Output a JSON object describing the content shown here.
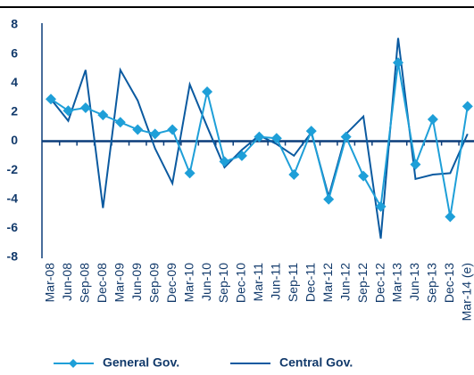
{
  "chart_data": {
    "type": "line",
    "categories": [
      "Mar-08",
      "Jun-08",
      "Sep-08",
      "Dec-08",
      "Mar-09",
      "Jun-09",
      "Sep-09",
      "Dec-09",
      "Mar-10",
      "Jun-10",
      "Sep-10",
      "Dec-10",
      "Mar-11",
      "Jun-11",
      "Sep-11",
      "Dec-11",
      "Mar-12",
      "Jun-12",
      "Sep-12",
      "Dec-12",
      "Mar-13",
      "Jun-13",
      "Sep-13",
      "Dec-13",
      "Mar-14 (e)"
    ],
    "series": [
      {
        "name": "General Gov.",
        "color": "#1e9fd8",
        "marker": "diamond",
        "values": [
          2.9,
          2.1,
          2.3,
          1.8,
          1.3,
          0.8,
          0.5,
          0.8,
          -2.2,
          3.4,
          -1.4,
          -1.0,
          0.3,
          0.2,
          -2.3,
          0.7,
          -4.0,
          0.3,
          -2.4,
          -4.5,
          5.4,
          -1.6,
          1.5,
          -5.2,
          2.4
        ]
      },
      {
        "name": "Central Gov.",
        "color": "#0b5aa0",
        "values": [
          2.9,
          1.4,
          4.9,
          -4.6,
          4.9,
          2.8,
          -0.5,
          -2.9,
          3.9,
          1.0,
          -1.8,
          -0.6,
          0.4,
          -0.2,
          -1.0,
          0.6,
          -3.8,
          0.5,
          1.7,
          -6.7,
          7.1,
          -2.6,
          -2.3,
          -2.2,
          0.5
        ]
      }
    ],
    "ylim": [
      -8,
      8
    ],
    "yticks": [
      -8,
      -6,
      -4,
      -2,
      0,
      2,
      4,
      6,
      8
    ],
    "legend": "bottom"
  }
}
